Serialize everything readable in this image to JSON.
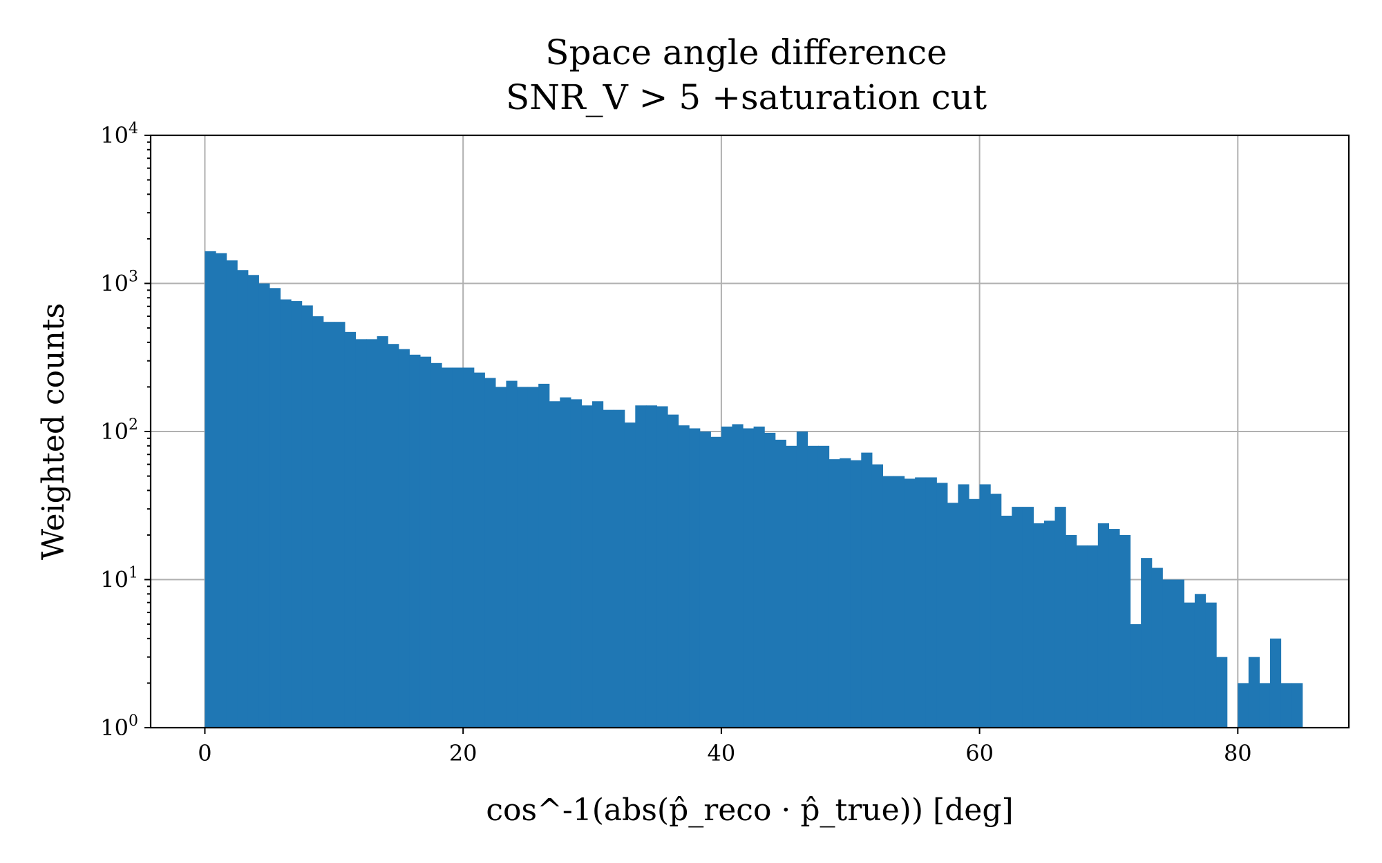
{
  "chart_data": {
    "type": "bar",
    "title": "Space angle difference",
    "subtitle": "SNR_V > 5 +saturation cut",
    "xlabel": "cos^-1(abs(p̂_reco · p̂_true)) [deg]",
    "ylabel": "Weighted counts",
    "yscale": "log",
    "xlim": [
      -4.2,
      88.6
    ],
    "ylim": [
      1,
      10000
    ],
    "grid": true,
    "xticks": [
      0,
      20,
      40,
      60,
      80
    ],
    "yticks": [
      {
        "value": 1,
        "base": "10",
        "exp": "0"
      },
      {
        "value": 10,
        "base": "10",
        "exp": "1"
      },
      {
        "value": 100,
        "base": "10",
        "exp": "2"
      },
      {
        "value": 1000,
        "base": "10",
        "exp": "3"
      },
      {
        "value": 10000,
        "base": "10",
        "exp": "4"
      }
    ],
    "bin_width": 0.8333,
    "bin_start": 0,
    "color": "#1f77b4",
    "values": [
      1650,
      1600,
      1430,
      1230,
      1140,
      1000,
      930,
      780,
      760,
      710,
      600,
      550,
      550,
      470,
      420,
      420,
      440,
      390,
      360,
      330,
      320,
      290,
      270,
      270,
      270,
      250,
      230,
      200,
      220,
      200,
      200,
      210,
      160,
      170,
      165,
      150,
      160,
      140,
      140,
      115,
      150,
      150,
      148,
      130,
      110,
      105,
      100,
      92,
      108,
      112,
      105,
      108,
      98,
      88,
      80,
      100,
      80,
      80,
      65,
      66,
      64,
      72,
      60,
      50,
      50,
      48,
      49,
      49,
      45,
      33,
      44,
      35,
      44,
      38,
      27,
      31,
      31,
      24,
      25,
      31,
      20,
      17,
      17,
      24,
      22,
      20,
      5,
      14,
      12,
      10,
      10,
      7,
      8,
      7,
      3,
      0,
      2,
      3,
      2,
      4,
      2,
      2
    ]
  }
}
